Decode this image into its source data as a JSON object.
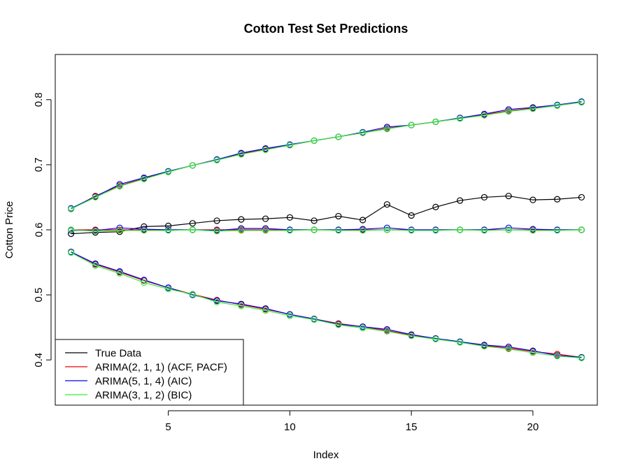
{
  "chart_data": {
    "type": "line",
    "title": "Cotton Test Set Predictions",
    "xlabel": "Index",
    "ylabel": "Cotton Price",
    "xlim": [
      0.35,
      22.65
    ],
    "ylim": [
      0.3305,
      0.8695
    ],
    "x_ticks": [
      5,
      10,
      15,
      20
    ],
    "y_ticks": [
      0.4,
      0.5,
      0.6,
      0.7,
      0.8
    ],
    "x_tick_labels": [
      "5",
      "10",
      "15",
      "20"
    ],
    "y_tick_labels": [
      "0.4",
      "0.5",
      "0.6",
      "0.7",
      "0.8"
    ],
    "x": [
      1,
      2,
      3,
      4,
      5,
      6,
      7,
      8,
      9,
      10,
      11,
      12,
      13,
      14,
      15,
      16,
      17,
      18,
      19,
      20,
      21,
      22
    ],
    "legend_position": "bottom-left",
    "series": [
      {
        "name": "True Data",
        "color": "#000000",
        "lines": [
          [
            0.594,
            0.596,
            0.597,
            0.605,
            0.606,
            0.61,
            0.614,
            0.616,
            0.617,
            0.619,
            0.614,
            0.621,
            0.615,
            0.639,
            0.622,
            0.635,
            0.645,
            0.65,
            0.652,
            0.646,
            0.647,
            0.65
          ]
        ]
      },
      {
        "name": "ARIMA(2, 1, 1) (ACF, PACF)",
        "color": "#ee0000",
        "lines": [
          [
            0.632,
            0.652,
            0.668,
            0.679,
            0.689,
            0.699,
            0.708,
            0.717,
            0.724,
            0.73,
            0.737,
            0.743,
            0.749,
            0.756,
            0.761,
            0.766,
            0.772,
            0.777,
            0.783,
            0.787,
            0.791,
            0.796
          ],
          [
            0.6,
            0.6,
            0.6,
            0.6,
            0.6,
            0.6,
            0.6,
            0.6,
            0.6,
            0.6,
            0.6,
            0.6,
            0.6,
            0.6,
            0.6,
            0.6,
            0.6,
            0.6,
            0.6,
            0.6,
            0.6,
            0.6
          ],
          [
            0.566,
            0.547,
            0.535,
            0.522,
            0.511,
            0.501,
            0.492,
            0.485,
            0.478,
            0.47,
            0.463,
            0.456,
            0.451,
            0.445,
            0.438,
            0.433,
            0.428,
            0.422,
            0.418,
            0.413,
            0.409,
            0.404
          ]
        ]
      },
      {
        "name": "ARIMA(5, 1, 4) (AIC)",
        "color": "#0000ee",
        "lines": [
          [
            0.633,
            0.651,
            0.67,
            0.68,
            0.69,
            0.699,
            0.708,
            0.718,
            0.725,
            0.731,
            0.737,
            0.743,
            0.75,
            0.758,
            0.761,
            0.766,
            0.772,
            0.778,
            0.785,
            0.788,
            0.792,
            0.797
          ],
          [
            0.599,
            0.599,
            0.603,
            0.601,
            0.6,
            0.6,
            0.599,
            0.602,
            0.602,
            0.6,
            0.6,
            0.6,
            0.601,
            0.603,
            0.6,
            0.6,
            0.6,
            0.6,
            0.603,
            0.601,
            0.6,
            0.6
          ],
          [
            0.566,
            0.548,
            0.536,
            0.523,
            0.511,
            0.5,
            0.491,
            0.486,
            0.479,
            0.47,
            0.463,
            0.455,
            0.451,
            0.447,
            0.439,
            0.433,
            0.428,
            0.423,
            0.42,
            0.414,
            0.407,
            0.404
          ]
        ]
      },
      {
        "name": "ARIMA(3, 1, 2) (BIC)",
        "color": "#33ee33",
        "lines": [
          [
            0.632,
            0.65,
            0.667,
            0.678,
            0.689,
            0.699,
            0.707,
            0.716,
            0.723,
            0.73,
            0.737,
            0.743,
            0.749,
            0.755,
            0.761,
            0.766,
            0.771,
            0.776,
            0.782,
            0.786,
            0.791,
            0.796
          ],
          [
            0.6,
            0.598,
            0.599,
            0.599,
            0.599,
            0.6,
            0.598,
            0.599,
            0.599,
            0.599,
            0.6,
            0.599,
            0.599,
            0.6,
            0.599,
            0.599,
            0.6,
            0.599,
            0.6,
            0.599,
            0.599,
            0.6
          ],
          [
            0.565,
            0.545,
            0.533,
            0.519,
            0.509,
            0.501,
            0.489,
            0.483,
            0.476,
            0.468,
            0.462,
            0.454,
            0.449,
            0.444,
            0.437,
            0.432,
            0.427,
            0.421,
            0.417,
            0.411,
            0.406,
            0.403
          ]
        ]
      }
    ]
  }
}
